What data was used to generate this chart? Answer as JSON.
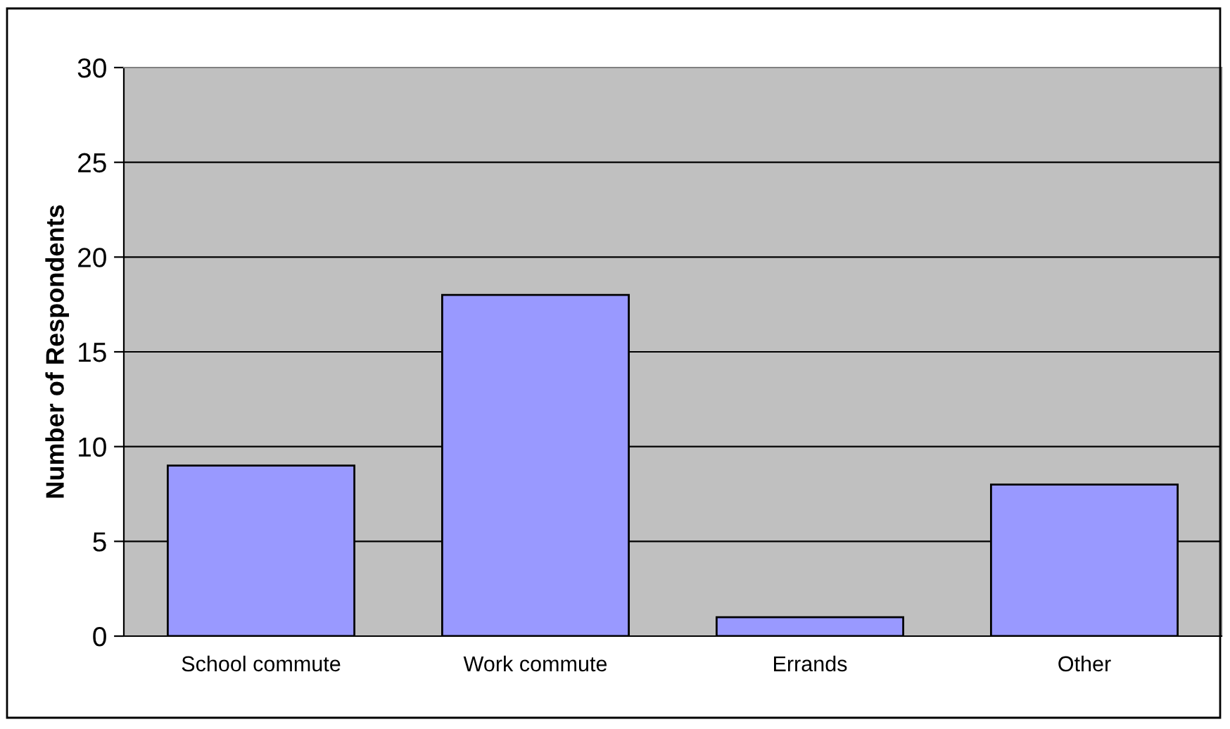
{
  "chart_data": {
    "type": "bar",
    "ylabel": "Number of Respondents",
    "categories": [
      "School commute",
      "Work commute",
      "Errands",
      "Other"
    ],
    "values": [
      9,
      18,
      1,
      8
    ],
    "color": "#9999ff",
    "ylim": [
      0,
      30
    ],
    "yticks": [
      0,
      5,
      10,
      15,
      20,
      25,
      30
    ],
    "grid": "y"
  }
}
